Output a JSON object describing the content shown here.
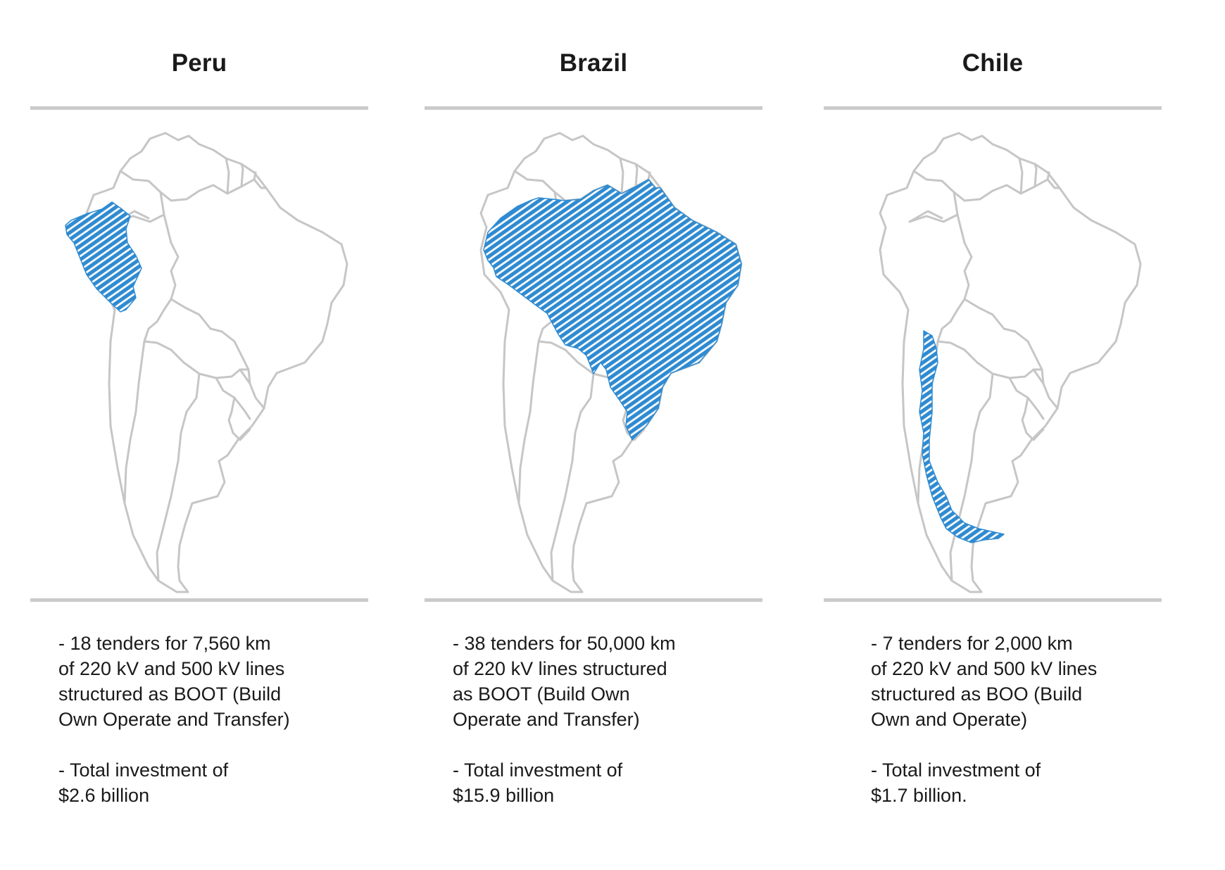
{
  "panels": [
    {
      "country": "Peru",
      "highlight_color": "#2f8bd1",
      "description": [
        "- 18 tenders for 7,560 km",
        "of 220 kV and 500 kV lines",
        "structured as BOOT (Build",
        "Own Operate and Transfer)"
      ],
      "investment": [
        "- Total investment of",
        "$2.6 billion"
      ]
    },
    {
      "country": "Brazil",
      "highlight_color": "#2f8bd1",
      "description": [
        "- 38 tenders for 50,000 km",
        "of 220 kV lines structured",
        "as BOOT (Build Own",
        "Operate and Transfer)"
      ],
      "investment": [
        "- Total investment of",
        "$15.9 billion"
      ]
    },
    {
      "country": "Chile",
      "highlight_color": "#2f8bd1",
      "description": [
        "- 7 tenders for 2,000 km",
        "of 220 kV and 500 kV lines",
        "structured as BOO (Build",
        "Own and Operate)"
      ],
      "investment": [
        "- Total investment of",
        "$1.7 billion."
      ]
    }
  ]
}
